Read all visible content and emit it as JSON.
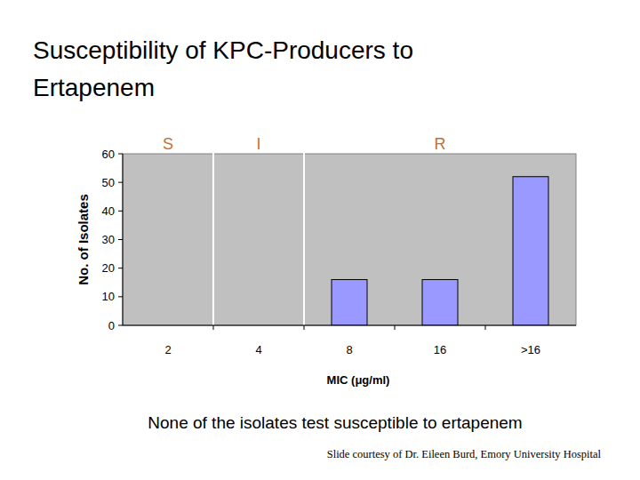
{
  "chart_data": {
    "type": "bar",
    "title": "Susceptibility of KPC-Producers to Ertapenem",
    "categories": [
      "2",
      "4",
      "8",
      "16",
      ">16"
    ],
    "values": [
      0,
      0,
      16,
      16,
      52
    ],
    "color": "#9999ff",
    "ylim": [
      0,
      60
    ],
    "yticks": [
      0,
      10,
      20,
      30,
      40,
      50,
      60
    ],
    "grid": false,
    "x_label": "MIC (μg/ml)",
    "y_label": "No. of Isolates",
    "annotations": [
      "S",
      "I",
      "R"
    ]
  },
  "caption": "None of the isolates test susceptible to ertapenem",
  "source": "Slide courtesy of Dr. Eileen Burd, Emory University Hospital"
}
